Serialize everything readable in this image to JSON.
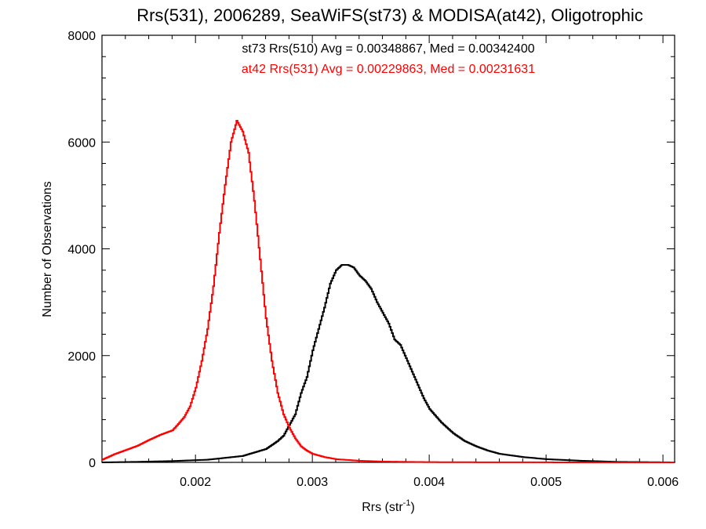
{
  "chart_data": {
    "type": "line",
    "step": true,
    "title": "Rrs(531), 2006289, SeaWiFS(st73) & MODISA(at42), Oligotrophic",
    "xlabel_main": "Rrs (str",
    "xlabel_sup": "-1",
    "xlabel_close": ")",
    "ylabel": "Number of Observations",
    "xlim": [
      0.0012,
      0.0061
    ],
    "ylim": [
      0,
      8000
    ],
    "x_ticks": [
      0.002,
      0.003,
      0.004,
      0.005,
      0.006
    ],
    "x_tick_labels": [
      "0.002",
      "0.003",
      "0.004",
      "0.005",
      "0.006"
    ],
    "y_ticks": [
      0,
      2000,
      4000,
      6000,
      8000
    ],
    "y_tick_labels": [
      "0",
      "2000",
      "4000",
      "6000",
      "8000"
    ],
    "grid": false,
    "legend_position": "top-center",
    "series": [
      {
        "name": "st73 Rrs(510) Avg = 0.00348867, Med = 0.00342400",
        "color": "#000000",
        "x": [
          0.0012,
          0.0015,
          0.0018,
          0.0021,
          0.0024,
          0.0026,
          0.0027,
          0.00275,
          0.0028,
          0.00285,
          0.0029,
          0.00295,
          0.003,
          0.00305,
          0.0031,
          0.00315,
          0.0032,
          0.00325,
          0.0033,
          0.00335,
          0.0034,
          0.00345,
          0.0035,
          0.00355,
          0.0036,
          0.00365,
          0.0037,
          0.00375,
          0.0038,
          0.00385,
          0.0039,
          0.00395,
          0.004,
          0.0041,
          0.0042,
          0.0043,
          0.0044,
          0.0045,
          0.0046,
          0.0048,
          0.005,
          0.0053,
          0.0056,
          0.0061
        ],
        "y": [
          0,
          10,
          25,
          50,
          120,
          250,
          400,
          500,
          700,
          900,
          1300,
          1600,
          2100,
          2500,
          2900,
          3350,
          3600,
          3700,
          3700,
          3650,
          3500,
          3400,
          3250,
          3000,
          2800,
          2600,
          2300,
          2200,
          1950,
          1700,
          1450,
          1200,
          1000,
          750,
          550,
          400,
          300,
          220,
          160,
          100,
          60,
          30,
          10,
          0
        ]
      },
      {
        "name": "at42 Rrs(531) Avg = 0.00229863, Med = 0.00231631",
        "color": "#ff0000",
        "x": [
          0.0012,
          0.0013,
          0.0014,
          0.0015,
          0.0016,
          0.0017,
          0.0018,
          0.00185,
          0.0019,
          0.00195,
          0.002,
          0.00205,
          0.0021,
          0.00215,
          0.0022,
          0.00225,
          0.0023,
          0.00235,
          0.0024,
          0.00245,
          0.0025,
          0.00255,
          0.0026,
          0.00265,
          0.0027,
          0.00275,
          0.0028,
          0.00285,
          0.0029,
          0.00295,
          0.003,
          0.0031,
          0.0032,
          0.0034,
          0.0036,
          0.004,
          0.0045,
          0.005,
          0.0061
        ],
        "y": [
          50,
          150,
          230,
          310,
          420,
          520,
          600,
          720,
          850,
          1050,
          1400,
          1900,
          2500,
          3300,
          4300,
          5200,
          6000,
          6400,
          6200,
          5800,
          4900,
          3800,
          2700,
          1900,
          1300,
          900,
          650,
          450,
          300,
          220,
          160,
          100,
          60,
          30,
          15,
          5,
          2,
          1,
          0
        ]
      }
    ]
  }
}
